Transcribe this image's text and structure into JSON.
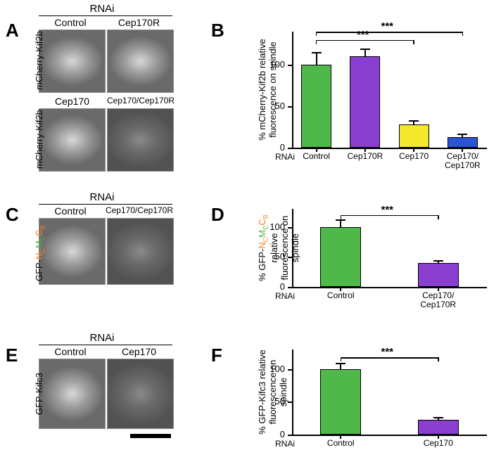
{
  "panelA": {
    "label": "A",
    "header": "RNAi",
    "conditions": [
      "Control",
      "Cep170R",
      "Cep170",
      "Cep170/Cep170R"
    ],
    "ylabel": "mCherry-Kif2b"
  },
  "panelB": {
    "label": "B",
    "ylabel": "% mCherry-Kif2b relative\nfluorescence on spindle",
    "xaxis_prefix": "RNAi",
    "categories": [
      "Control",
      "Cep170R",
      "Cep170",
      "Cep170/\nCep170R"
    ],
    "values": [
      100,
      110,
      28,
      13
    ],
    "errors": [
      15,
      10,
      5,
      4
    ],
    "colors": [
      "#4fb84a",
      "#8a3fd1",
      "#f5e92e",
      "#2a54d8"
    ],
    "ylim": [
      0,
      140
    ],
    "yticks": [
      0,
      50,
      100
    ],
    "sig": [
      {
        "from": 0,
        "to": 2,
        "label": "***",
        "y": 130
      },
      {
        "from": 0,
        "to": 3,
        "label": "***",
        "y": 140
      }
    ]
  },
  "panelC": {
    "label": "C",
    "header": "RNAi",
    "conditions": [
      "Control",
      "Cep170/Cep170R"
    ],
    "ylabel_parts": [
      {
        "t": "GFP-",
        "c": "#000"
      },
      {
        "t": "N",
        "c": "#ff7f1e"
      },
      {
        "t": "C",
        "c": "#ff7f1e",
        "sub": true
      },
      {
        "t": "M",
        "c": "#4fb84a"
      },
      {
        "t": "C",
        "c": "#4fb84a",
        "sub": true
      },
      {
        "t": "C",
        "c": "#ff7f1e"
      },
      {
        "t": "B",
        "c": "#ff7f1e",
        "sub": true
      }
    ]
  },
  "panelD": {
    "label": "D",
    "ylabel_prefix": "% GFP-",
    "ylabel_suffix": " relative\nfluorescence on spindle",
    "xaxis_prefix": "RNAi",
    "categories": [
      "Control",
      "Cep170/\nCep170R"
    ],
    "values": [
      100,
      40
    ],
    "errors": [
      12,
      5
    ],
    "colors": [
      "#4fb84a",
      "#8a3fd1"
    ],
    "ylim": [
      0,
      130
    ],
    "yticks": [
      0,
      50,
      100
    ],
    "sig": [
      {
        "from": 0,
        "to": 1,
        "label": "***",
        "y": 120
      }
    ]
  },
  "panelE": {
    "label": "E",
    "header": "RNAi",
    "conditions": [
      "Control",
      "Cep170"
    ],
    "ylabel": "GFP-Kifc3"
  },
  "panelF": {
    "label": "F",
    "ylabel": "% GFP-Kifc3 relative\nfluorescence on spindle",
    "xaxis_prefix": "RNAi",
    "categories": [
      "Control",
      "Cep170"
    ],
    "values": [
      100,
      23
    ],
    "errors": [
      10,
      4
    ],
    "colors": [
      "#4fb84a",
      "#8a3fd1"
    ],
    "ylim": [
      0,
      130
    ],
    "yticks": [
      0,
      50,
      100
    ],
    "sig": [
      {
        "from": 0,
        "to": 1,
        "label": "***",
        "y": 118
      }
    ]
  }
}
